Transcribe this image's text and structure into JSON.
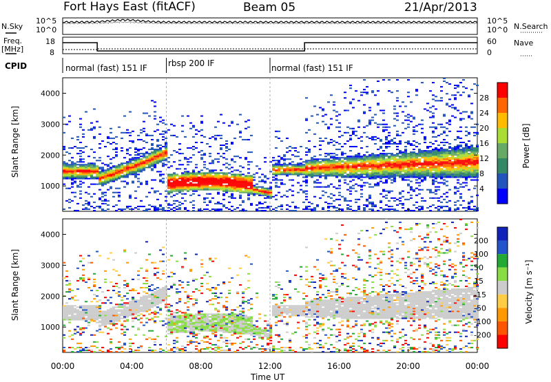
{
  "header": {
    "station": "Fort Hays East (fitACF)",
    "beam": "Beam 05",
    "date": "21/Apr/2013"
  },
  "panel_labels": {
    "nsky": "N.Sky",
    "nsearch": "N.Search",
    "freq": "Freq.",
    "freq_unit": "[MHz]",
    "nave": "Nave",
    "cpid": "CPID",
    "nsky_ticks": [
      "10^5",
      "10^0"
    ],
    "nsearch_ticks": [
      "10^5",
      "10^0"
    ],
    "freq_ticks": [
      "18",
      "8"
    ],
    "nave_ticks": [
      "60",
      "0"
    ]
  },
  "cpid_segments": [
    {
      "label": "normal (fast) 151 IF",
      "start_hour": 0
    },
    {
      "label": "rbsp 200 IF",
      "start_hour": 6
    },
    {
      "label": "normal (fast) 151 IF",
      "start_hour": 12
    }
  ],
  "colors": {
    "power_scale": [
      "#0000ff",
      "#2255bb",
      "#338866",
      "#66aa66",
      "#aadd33",
      "#ffbb00",
      "#ff6600",
      "#ff0000"
    ],
    "velocity_scale": [
      "#1122bb",
      "#2255cc",
      "#22aa33",
      "#88dd44",
      "#cccccc",
      "#ffcc44",
      "#ff9900",
      "#ff5500",
      "#ff0000"
    ]
  },
  "chart_data": [
    {
      "type": "heatmap",
      "name": "power",
      "ylabel": "Slant Range [km]",
      "yticks": [
        "1000",
        "2000",
        "3000",
        "4000"
      ],
      "ylim": [
        180,
        4500
      ],
      "xlim": [
        0,
        24
      ],
      "colorbar_label": "Power [dB]",
      "colorbar_ticks": [
        "4",
        "8",
        "12",
        "16",
        "20",
        "24",
        "28"
      ],
      "colorbar_range": [
        0,
        32
      ]
    },
    {
      "type": "heatmap",
      "name": "velocity",
      "ylabel": "Slant Range [km]",
      "yticks": [
        "1000",
        "2000",
        "3000",
        "4000"
      ],
      "ylim": [
        180,
        4500
      ],
      "xlim": [
        0,
        24
      ],
      "colorbar_label": "Velocity [m s⁻¹]",
      "colorbar_ticks": [
        "200",
        "100",
        "50",
        "15",
        "-15",
        "-50",
        "-100",
        "-200"
      ]
    }
  ],
  "xaxis": {
    "label": "Time UT",
    "ticks": [
      "00:00",
      "04:00",
      "08:00",
      "12:00",
      "16:00",
      "20:00",
      "00:00"
    ]
  }
}
